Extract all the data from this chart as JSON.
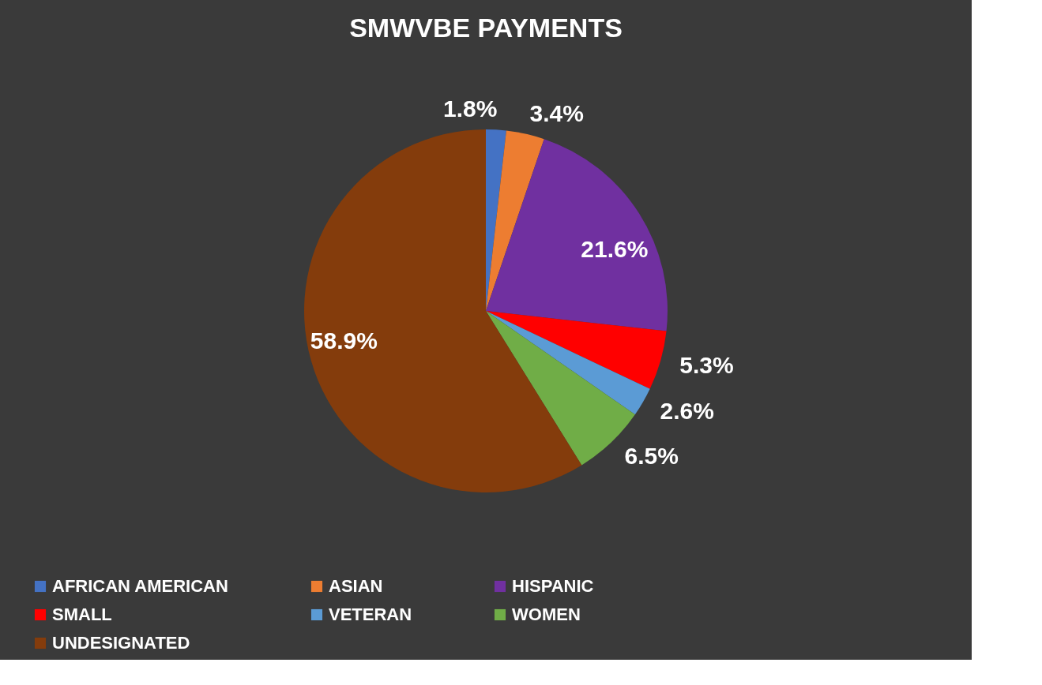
{
  "chart_data": {
    "type": "pie",
    "title": "SMWVBE  PAYMENTS",
    "categories": [
      "AFRICAN AMERICAN",
      "ASIAN",
      "HISPANIC",
      "SMALL",
      "VETERAN",
      "WOMEN",
      "UNDESIGNATED"
    ],
    "values": [
      1.8,
      3.4,
      21.6,
      5.3,
      2.6,
      6.5,
      58.9
    ],
    "value_labels": [
      "1.8%",
      "3.4%",
      "21.6%",
      "5.3%",
      "2.6%",
      "6.5%",
      "58.9%"
    ],
    "colors": [
      "#4472c4",
      "#ed7d31",
      "#7030a0",
      "#ff0000",
      "#5b9bd5",
      "#70ad47",
      "#843c0c"
    ],
    "legend": "bottom"
  }
}
